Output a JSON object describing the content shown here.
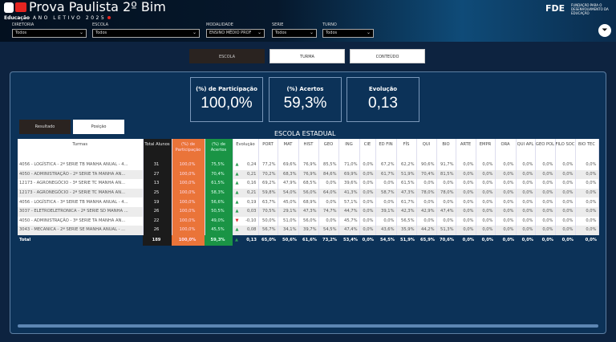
{
  "header": {
    "title": "Prova Paulista 2º Bim",
    "brand": "Educação",
    "year": "ANO LETIVO 2025",
    "partner_logo": "FDE",
    "partner_text": "FUNDAÇÃO PARA O DESENVOLVIMENTO DA EDUCAÇÃO"
  },
  "filters": [
    {
      "label": "DIRETORIA",
      "value": "Todos"
    },
    {
      "label": "ESCOLA",
      "value": "Todos"
    },
    {
      "label": "MODALIDADE",
      "value": "ENSINO MÉDIO PROF"
    },
    {
      "label": "SERIE",
      "value": "Todos"
    },
    {
      "label": "TURNO",
      "value": "Todos"
    }
  ],
  "nav": [
    "ESCOLA",
    "TURMA",
    "CONTEÚDO"
  ],
  "kpis": [
    {
      "label": "(%) de Participação",
      "value": "100,0%"
    },
    {
      "label": "(%) Acertos",
      "value": "59,3%"
    },
    {
      "label": "Evolução",
      "value": "0,13"
    }
  ],
  "toggles": [
    "Resultado",
    "Posição"
  ],
  "table": {
    "title": "ESCOLA ESTADUAL",
    "columns": [
      "Turmas",
      "Total Alunos",
      "(%) de Participação",
      "(%) de Acertos",
      "Evolução",
      "PORT",
      "MAT",
      "HIST",
      "GEO",
      "ING",
      "CIE",
      "ED FIN",
      "FÍS",
      "QUI",
      "BIO",
      "ARTE",
      "EMPR",
      "ORA",
      "QUI APL",
      "GEO POL",
      "FILO SOC",
      "BIO TEC"
    ],
    "rows": [
      [
        "4056 - LOGÍSTICA - 2ª SERIE TB MANHA ANUAL - 4...",
        "31",
        "100,0%",
        "75,5%",
        "up",
        "0,24",
        "77,2%",
        "69,6%",
        "76,9%",
        "85,5%",
        "71,0%",
        "0,0%",
        "67,2%",
        "62,2%",
        "90,6%",
        "91,7%",
        "0,0%",
        "0,0%",
        "0,0%",
        "0,0%",
        "0,0%",
        "0,0%",
        "0,0%"
      ],
      [
        "4050 - ADMINISTRAÇÃO - 2ª SERIE TA MANHA AN...",
        "27",
        "100,0%",
        "70,4%",
        "up",
        "0,21",
        "70,2%",
        "68,3%",
        "76,9%",
        "84,6%",
        "69,9%",
        "0,0%",
        "61,7%",
        "51,9%",
        "70,4%",
        "81,5%",
        "0,0%",
        "0,0%",
        "0,0%",
        "0,0%",
        "0,0%",
        "0,0%",
        "0,0%"
      ],
      [
        "12173 - AGRONEGÓCIO - 3ª SERIE TC MANHA AN...",
        "13",
        "100,0%",
        "61,5%",
        "up",
        "0,16",
        "69,2%",
        "47,9%",
        "68,5%",
        "0,0%",
        "39,6%",
        "0,0%",
        "0,0%",
        "61,5%",
        "0,0%",
        "0,0%",
        "0,0%",
        "0,0%",
        "0,0%",
        "0,0%",
        "0,0%",
        "0,0%",
        "0,0%"
      ],
      [
        "12173 - AGRONEGÓCIO - 2ª SERIE TC MANHA AN...",
        "25",
        "100,0%",
        "58,3%",
        "up",
        "0,21",
        "59,8%",
        "54,0%",
        "56,0%",
        "64,0%",
        "41,3%",
        "0,0%",
        "58,7%",
        "47,3%",
        "78,0%",
        "78,0%",
        "0,0%",
        "0,0%",
        "0,0%",
        "0,0%",
        "0,0%",
        "0,0%",
        "0,0%"
      ],
      [
        "4056 - LOGÍSTICA - 3ª SERIE TB MANHA ANUAL - 4...",
        "19",
        "100,0%",
        "56,6%",
        "up",
        "0,19",
        "63,7%",
        "45,0%",
        "68,9%",
        "0,0%",
        "57,1%",
        "0,0%",
        "0,0%",
        "61,7%",
        "0,0%",
        "0,0%",
        "0,0%",
        "0,0%",
        "0,0%",
        "0,0%",
        "0,0%",
        "0,0%",
        "0,0%"
      ],
      [
        "3037 - ELETROELETRONICA - 2ª SERIE SD MANHA ...",
        "26",
        "100,0%",
        "50,5%",
        "up",
        "0,03",
        "70,5%",
        "29,1%",
        "47,3%",
        "74,7%",
        "44,7%",
        "0,0%",
        "39,1%",
        "42,3%",
        "42,9%",
        "47,4%",
        "0,0%",
        "0,0%",
        "0,0%",
        "0,0%",
        "0,0%",
        "0,0%",
        "0,0%"
      ],
      [
        "4050 - ADMINISTRAÇÃO - 3ª SERIE TA MANHA AN...",
        "22",
        "100,0%",
        "49,0%",
        "down",
        "-0,10",
        "50,0%",
        "51,0%",
        "56,0%",
        "0,0%",
        "45,7%",
        "0,0%",
        "0,0%",
        "56,5%",
        "0,0%",
        "0,0%",
        "0,0%",
        "0,0%",
        "0,0%",
        "0,0%",
        "0,0%",
        "0,0%",
        "0,0%"
      ],
      [
        "3043 - MECANICA - 2ª SERIE SE MANHA ANUAL - ...",
        "26",
        "100,0%",
        "45,5%",
        "up",
        "0,08",
        "56,7%",
        "34,1%",
        "39,7%",
        "54,5%",
        "47,4%",
        "0,0%",
        "43,6%",
        "35,9%",
        "44,2%",
        "51,3%",
        "0,0%",
        "0,0%",
        "0,0%",
        "0,0%",
        "0,0%",
        "0,0%",
        "0,0%"
      ]
    ],
    "total": [
      "Total",
      "189",
      "100,0%",
      "59,3%",
      "up",
      "0,13",
      "65,0%",
      "50,6%",
      "61,6%",
      "73,2%",
      "53,4%",
      "0,0%",
      "54,5%",
      "51,9%",
      "65,9%",
      "70,6%",
      "0,0%",
      "0,0%",
      "0,0%",
      "0,0%",
      "0,0%",
      "0,0%",
      "0,0%"
    ]
  }
}
